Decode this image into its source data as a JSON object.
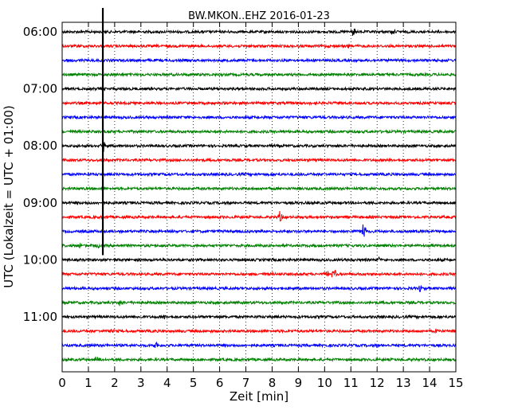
{
  "chart_data": {
    "type": "line",
    "title": "BW.MKON..EHZ 2016-01-23",
    "xlabel": "Zeit  [min]",
    "ylabel": "UTC (Lokalzeit = UTC + 01:00)",
    "xlim": [
      0,
      15
    ],
    "x_ticks": [
      "0",
      "1",
      "2",
      "3",
      "4",
      "5",
      "6",
      "7",
      "8",
      "9",
      "10",
      "11",
      "12",
      "13",
      "14",
      "15"
    ],
    "y_tick_labels": [
      "06:00",
      "07:00",
      "08:00",
      "09:00",
      "10:00",
      "11:00"
    ],
    "grid": "vertical dotted",
    "trace_start": "06:00",
    "trace_interval_min": 15,
    "trace_colors": [
      "#000000",
      "#ff0000",
      "#0000ff",
      "#008000"
    ],
    "traces_count": 24,
    "vertical_spike": {
      "x_min": 1.55,
      "from_trace": 0,
      "to_trace": 15
    },
    "events": [
      {
        "trace": 0,
        "x_min": 11.1,
        "amp": 0.6
      },
      {
        "trace": 0,
        "x_min": 12.6,
        "amp": 0.35
      },
      {
        "trace": 1,
        "x_min": 10.9,
        "amp": 0.25
      },
      {
        "trace": 8,
        "x_min": 1.55,
        "amp": 0.9
      },
      {
        "trace": 13,
        "x_min": 8.3,
        "amp": 0.6
      },
      {
        "trace": 14,
        "x_min": 11.5,
        "amp": 1.2
      },
      {
        "trace": 15,
        "x_min": 0.65,
        "amp": 0.4
      },
      {
        "trace": 15,
        "x_min": 1.35,
        "amp": 0.4
      },
      {
        "trace": 16,
        "x_min": 12.1,
        "amp": 0.3
      },
      {
        "trace": 17,
        "x_min": 10.1,
        "amp": 0.5
      },
      {
        "trace": 17,
        "x_min": 10.35,
        "amp": 0.7
      },
      {
        "trace": 18,
        "x_min": 13.6,
        "amp": 0.45
      },
      {
        "trace": 19,
        "x_min": 2.2,
        "amp": 0.3
      },
      {
        "trace": 20,
        "x_min": 3.9,
        "amp": 0.3
      },
      {
        "trace": 21,
        "x_min": 1.9,
        "amp": 0.3
      },
      {
        "trace": 21,
        "x_min": 14.3,
        "amp": 0.3
      },
      {
        "trace": 22,
        "x_min": 3.6,
        "amp": 0.3
      },
      {
        "trace": 23,
        "x_min": 1.3,
        "amp": 0.25
      }
    ]
  }
}
